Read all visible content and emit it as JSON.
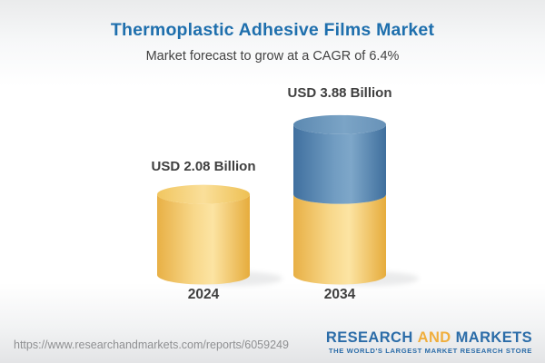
{
  "header": {
    "title": "Thermoplastic Adhesive Films Market",
    "subtitle": "Market forecast to grow at a CAGR of 6.4%"
  },
  "chart_data": {
    "type": "bar",
    "style": "3d-stacked-cylinder",
    "title": "Thermoplastic Adhesive Films Market",
    "subtitle": "Market forecast to grow at a CAGR of 6.4%",
    "unit": "USD Billion",
    "cagr_percent": 6.4,
    "categories": [
      "2024",
      "2034"
    ],
    "values": [
      2.08,
      3.88
    ],
    "value_labels": [
      "USD 2.08 Billion",
      "USD 3.88 Billion"
    ],
    "series": [
      {
        "name": "base-2024-value",
        "color_key": "yellow",
        "values": [
          2.08,
          2.08
        ]
      },
      {
        "name": "growth-to-2034",
        "color_key": "blue",
        "values": [
          0,
          1.8
        ]
      }
    ],
    "legend": "none",
    "grid": "off",
    "axis": "none"
  },
  "bars": [
    {
      "year": "2024",
      "label": "USD 2.08 Billion",
      "segments": [
        {
          "color": "yellow",
          "value": 2.08
        }
      ]
    },
    {
      "year": "2034",
      "label": "USD 3.88 Billion",
      "segments": [
        {
          "color": "yellow",
          "value": 2.08
        },
        {
          "color": "blue",
          "value": 1.8
        }
      ]
    }
  ],
  "footer": {
    "url": "https://www.researchandmarkets.com/reports/6059249",
    "logo": {
      "research": "RESEARCH",
      "and": "AND",
      "markets": "MARKETS",
      "tagline": "THE WORLD'S LARGEST MARKET RESEARCH STORE"
    }
  },
  "colors": {
    "title_blue": "#1e6fad",
    "text_dark": "#3f3f3f",
    "logo_blue": "#2b6ca8",
    "logo_orange": "#f0ae3c",
    "cylinder_yellow": "#f5cf6f",
    "cylinder_blue": "#5b88ad",
    "url_gray": "#8f9092"
  }
}
